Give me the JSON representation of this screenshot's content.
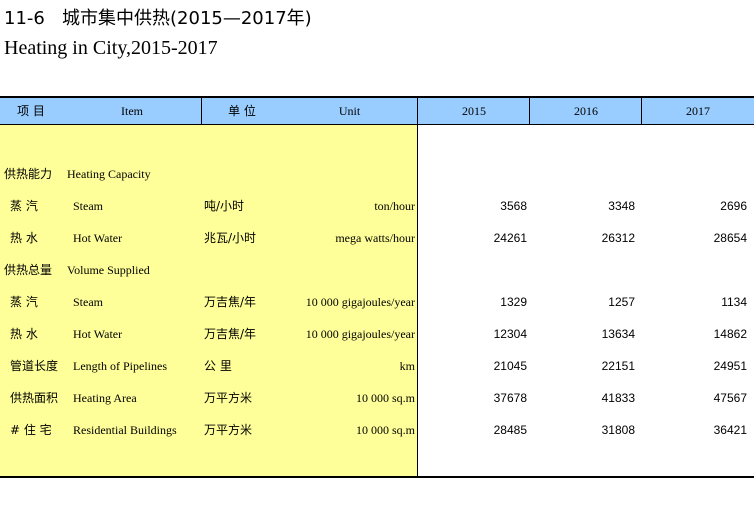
{
  "title": {
    "cn": "11-6   城市集中供热(2015—2017年)",
    "en": "Heating in City,2015-2017"
  },
  "header": {
    "item_cn": "项    目",
    "item_en": "Item",
    "unit_cn": "单  位",
    "unit_en": "Unit",
    "years": [
      "2015",
      "2016",
      "2017"
    ]
  },
  "rows": [
    {
      "cn": "供热能力",
      "en": "Heating Capacity",
      "unit_cn": "",
      "unit_en": "",
      "values": [
        "",
        "",
        ""
      ]
    },
    {
      "cn": "蒸  汽",
      "en": "Steam",
      "unit_cn": "吨/小时",
      "unit_en": "ton/hour",
      "values": [
        "3568",
        "3348",
        "2696"
      ]
    },
    {
      "cn": "热  水",
      "en": "Hot Water",
      "unit_cn": "兆瓦/小时",
      "unit_en": "mega watts/hour",
      "values": [
        "24261",
        "26312",
        "28654"
      ]
    },
    {
      "cn": "供热总量",
      "en": "Volume Supplied",
      "unit_cn": "",
      "unit_en": "",
      "values": [
        "",
        "",
        ""
      ]
    },
    {
      "cn": "蒸  汽",
      "en": "Steam",
      "unit_cn": "万吉焦/年",
      "unit_en": "10 000 gigajoules/year",
      "values": [
        "1329",
        "1257",
        "1134"
      ]
    },
    {
      "cn": "热  水",
      "en": "Hot Water",
      "unit_cn": "万吉焦/年",
      "unit_en": "10 000 gigajoules/year",
      "values": [
        "12304",
        "13634",
        "14862"
      ]
    },
    {
      "cn": "管道长度",
      "en": "Length of Pipelines",
      "unit_cn": "公  里",
      "unit_en": "km",
      "values": [
        "21045",
        "22151",
        "24951"
      ]
    },
    {
      "cn": "供热面积",
      "en": "Heating Area",
      "unit_cn": "万平方米",
      "unit_en": "10 000 sq.m",
      "values": [
        "37678",
        "41833",
        "47567"
      ]
    },
    {
      "cn": "# 住  宅",
      "en": "Residential Buildings",
      "unit_cn": "万平方米",
      "unit_en": "10 000 sq.m",
      "values": [
        "28485",
        "31808",
        "36421"
      ]
    }
  ]
}
